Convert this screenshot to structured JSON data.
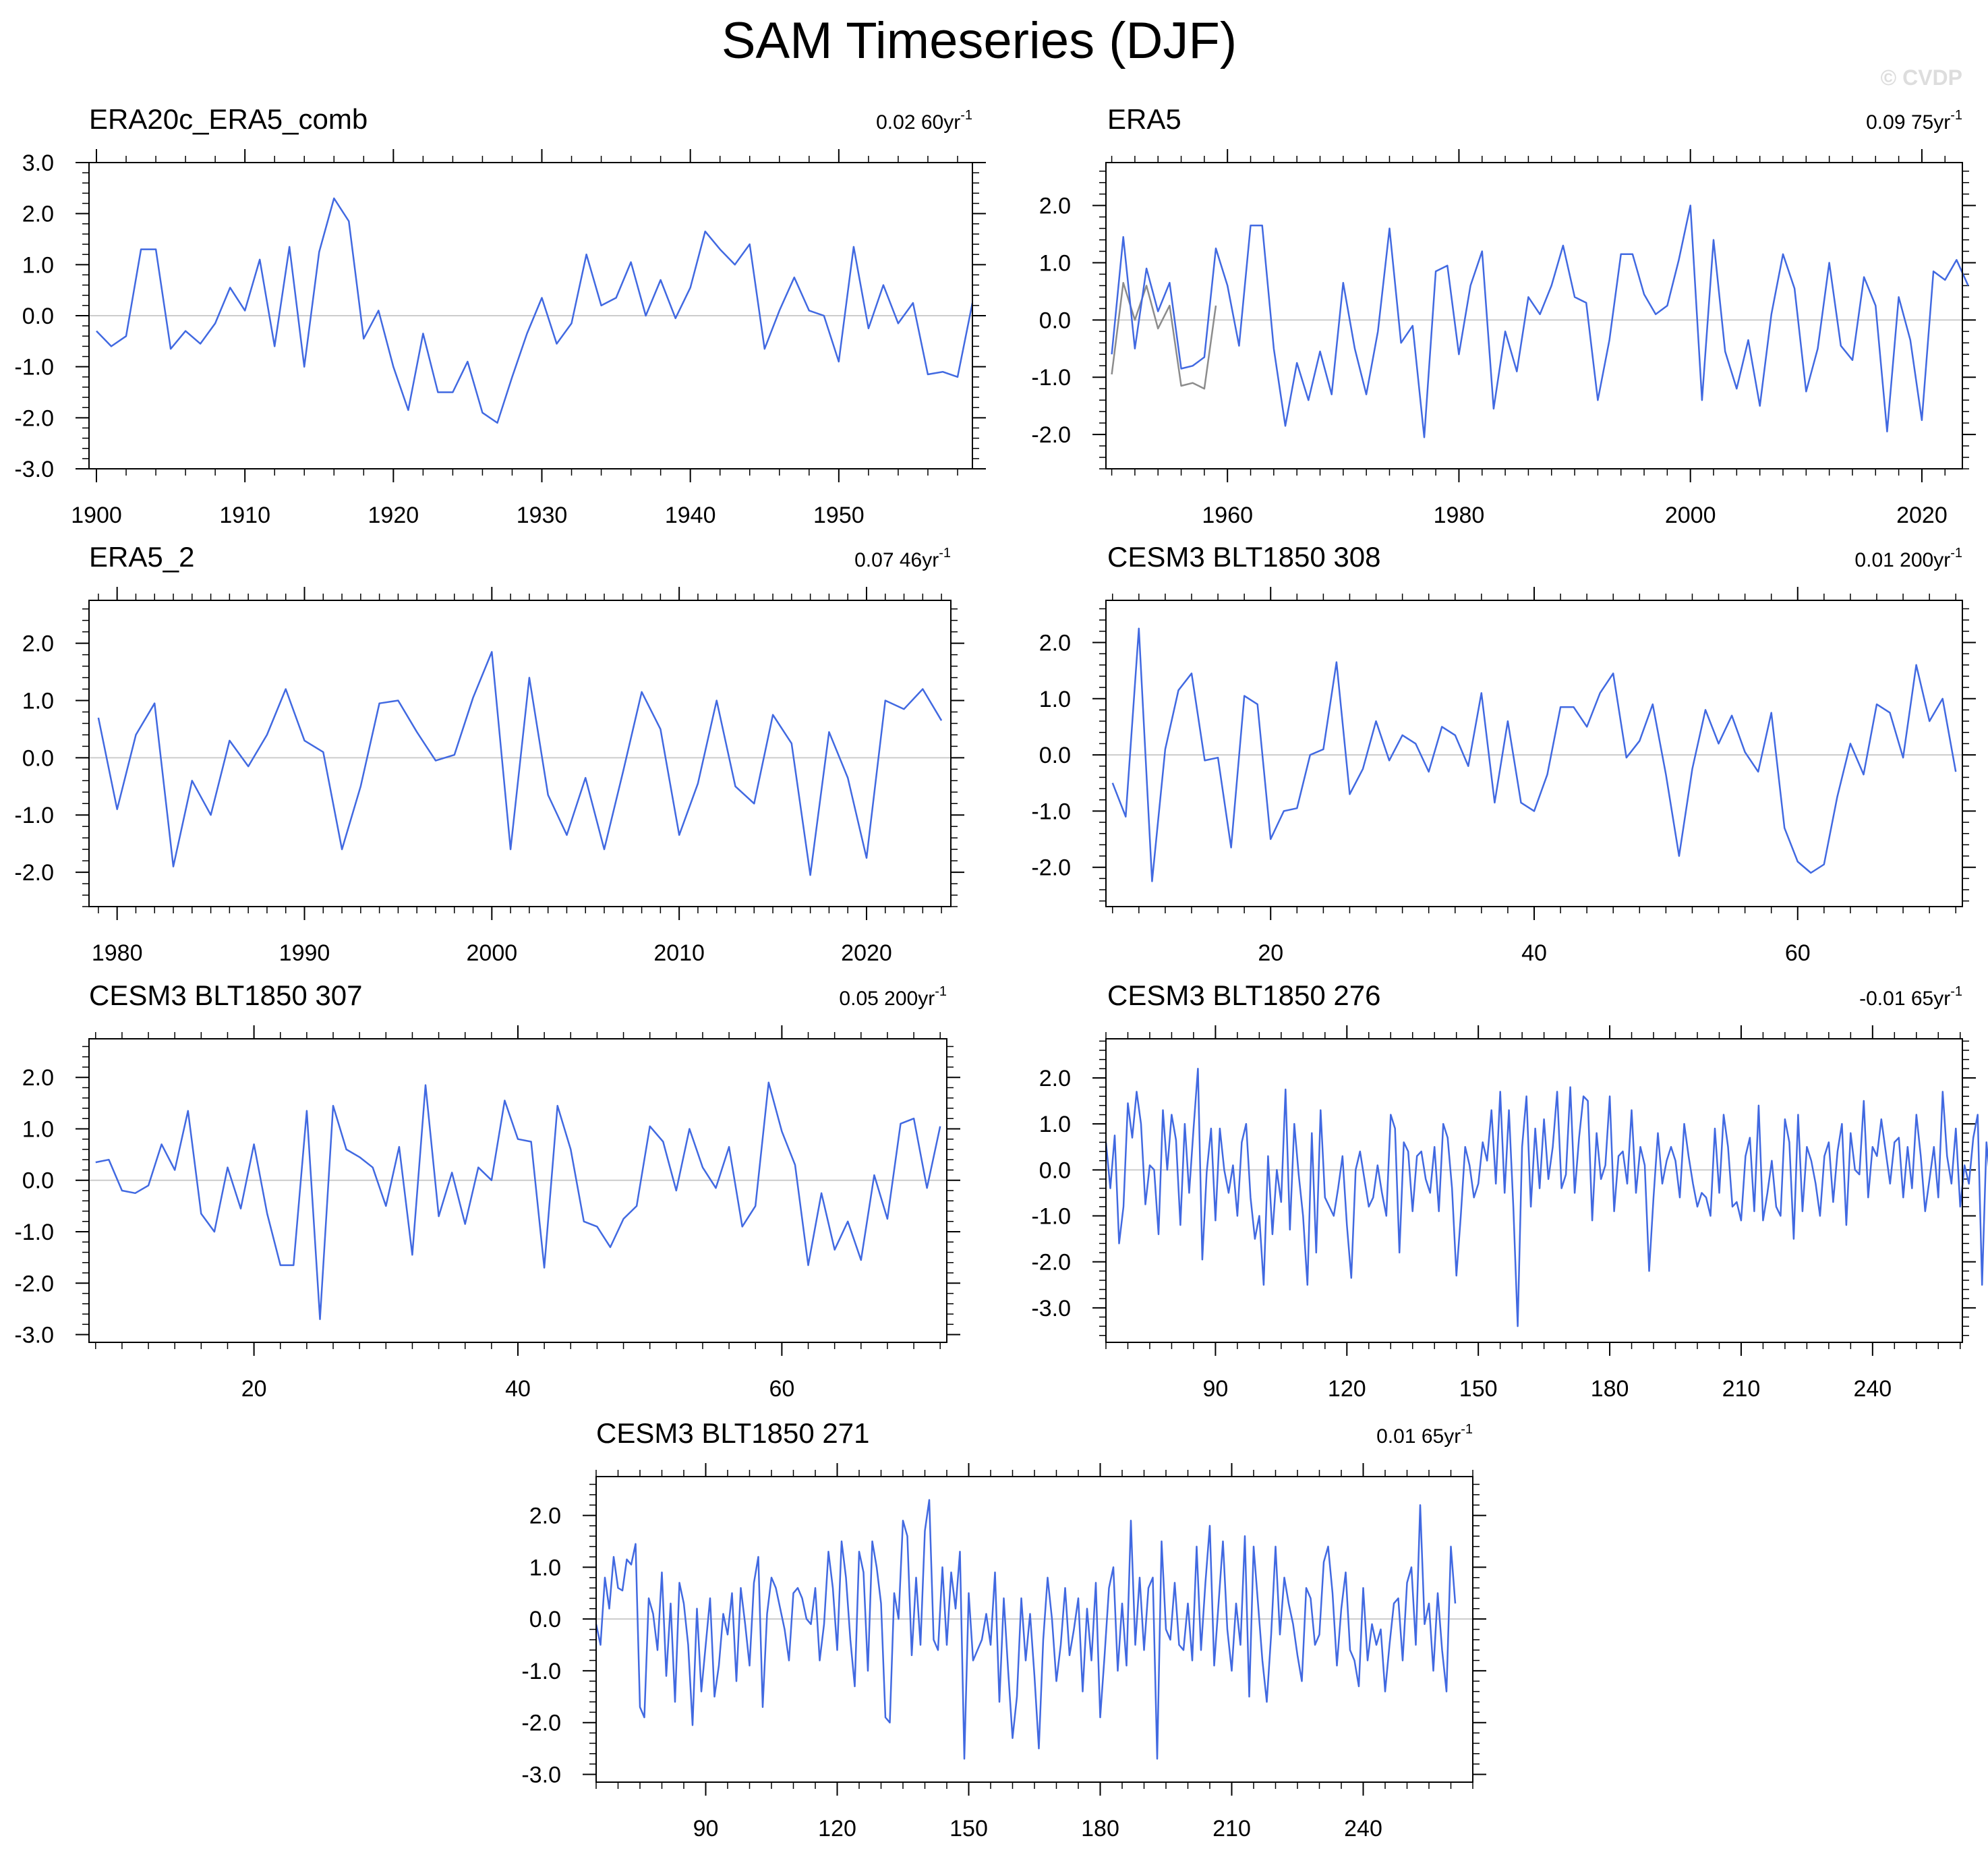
{
  "figure": {
    "title": "SAM Timeseries (DJF)",
    "watermark": "© CVDP"
  },
  "colors": {
    "line": "#4169e1",
    "obs_overlay": "#8c8c8c",
    "zero_line": "#cccccc",
    "axis": "#000000"
  },
  "chart_data": [
    {
      "type": "line",
      "title": "ERA20c_ERA5_comb",
      "trend_value": "0.02 60yr",
      "trend_unit_exp": "-1",
      "xlim": [
        1899.5,
        1959
      ],
      "ylim": [
        -3,
        3
      ],
      "yticks": [
        -3,
        -2,
        -1,
        0,
        1,
        2,
        3
      ],
      "ytick_labels": [
        "-3.0",
        "-2.0",
        "-1.0",
        "0.0",
        "1.0",
        "2.0",
        "3.0"
      ],
      "xticks": [
        1900,
        1910,
        1920,
        1930,
        1940,
        1950
      ],
      "xtick_labels": [
        "1900",
        "1910",
        "1920",
        "1930",
        "1940",
        "1950"
      ],
      "x_start": 1900,
      "values": [
        -0.3,
        -0.6,
        -0.4,
        1.3,
        1.3,
        -0.65,
        -0.3,
        -0.55,
        -0.15,
        0.55,
        0.1,
        1.1,
        -0.6,
        1.35,
        -1.0,
        1.25,
        2.3,
        1.85,
        -0.45,
        0.1,
        -1.0,
        -1.85,
        -0.35,
        -1.5,
        -1.5,
        -0.9,
        -1.9,
        -2.1,
        -1.2,
        -0.35,
        0.35,
        -0.55,
        -0.15,
        1.2,
        0.2,
        0.35,
        1.05,
        0.0,
        0.7,
        -0.05,
        0.55,
        1.65,
        1.3,
        1.0,
        1.4,
        -0.65,
        0.1,
        0.75,
        0.1,
        0.0,
        -0.9,
        1.35,
        -0.25,
        0.6,
        -0.15,
        0.25,
        -1.15,
        -1.1,
        -1.2,
        0.25
      ]
    },
    {
      "type": "line",
      "title": "ERA5",
      "trend_value": "0.09 75yr",
      "trend_unit_exp": "-1",
      "xlim": [
        1949.5,
        2023.5
      ],
      "ylim": [
        -2.6,
        2.75
      ],
      "yticks": [
        -2,
        -1,
        0,
        1,
        2
      ],
      "ytick_labels": [
        "-2.0",
        "-1.0",
        "0.0",
        "1.0",
        "2.0"
      ],
      "xticks": [
        1960,
        1980,
        2000,
        2020
      ],
      "xtick_labels": [
        "1960",
        "1980",
        "2000",
        "2020"
      ],
      "x_start": 1950,
      "values": [
        -0.6,
        1.45,
        -0.5,
        0.9,
        0.15,
        0.65,
        -0.85,
        -0.8,
        -0.65,
        1.25,
        0.6,
        -0.45,
        1.65,
        1.65,
        -0.5,
        -1.85,
        -0.75,
        -1.4,
        -0.55,
        -1.3,
        0.65,
        -0.5,
        -1.3,
        -0.2,
        1.6,
        -0.4,
        -0.1,
        -2.05,
        0.85,
        0.95,
        -0.6,
        0.6,
        1.2,
        -1.55,
        -0.2,
        -0.9,
        0.4,
        0.1,
        0.6,
        1.3,
        0.4,
        0.3,
        -1.4,
        -0.35,
        1.15,
        1.15,
        0.45,
        0.1,
        0.25,
        1.05,
        2.0,
        -1.4,
        1.4,
        -0.55,
        -1.2,
        -0.35,
        -1.5,
        0.1,
        1.15,
        0.55,
        -1.25,
        -0.5,
        1.0,
        -0.45,
        -0.7,
        0.75,
        0.25,
        -1.95,
        0.4,
        -0.35,
        -1.75,
        0.85,
        0.7,
        1.05,
        0.6
      ],
      "overlay": {
        "x_start": 1950,
        "values": [
          -0.95,
          0.65,
          0.0,
          0.6,
          -0.15,
          0.25,
          -1.15,
          -1.1,
          -1.2,
          0.25
        ]
      }
    },
    {
      "type": "line",
      "title": "ERA5_2",
      "trend_value": "0.07 46yr",
      "trend_unit_exp": "-1",
      "xlim": [
        1978.5,
        2024.5
      ],
      "ylim": [
        -2.6,
        2.75
      ],
      "yticks": [
        -2,
        -1,
        0,
        1,
        2
      ],
      "ytick_labels": [
        "-2.0",
        "-1.0",
        "0.0",
        "1.0",
        "2.0"
      ],
      "xticks": [
        1980,
        1990,
        2000,
        2010,
        2020
      ],
      "xtick_labels": [
        "1980",
        "1990",
        "2000",
        "2010",
        "2020"
      ],
      "x_start": 1979,
      "values": [
        0.7,
        -0.9,
        0.4,
        0.95,
        -1.9,
        -0.4,
        -1.0,
        0.3,
        -0.15,
        0.4,
        1.2,
        0.3,
        0.1,
        -1.6,
        -0.5,
        0.95,
        1.0,
        0.45,
        -0.05,
        0.05,
        1.05,
        1.85,
        -1.6,
        1.4,
        -0.65,
        -1.35,
        -0.35,
        -1.6,
        -0.25,
        1.15,
        0.5,
        -1.35,
        -0.45,
        1.0,
        -0.5,
        -0.8,
        0.75,
        0.25,
        -2.05,
        0.45,
        -0.35,
        -1.75,
        1.0,
        0.85,
        1.2,
        0.65
      ]
    },
    {
      "type": "line",
      "title": "CESM3 BLT1850 308",
      "trend_value": "0.01 200yr",
      "trend_unit_exp": "-1",
      "xlim": [
        7.5,
        72.5
      ],
      "ylim": [
        -2.7,
        2.75
      ],
      "yticks": [
        -2,
        -1,
        0,
        1,
        2
      ],
      "ytick_labels": [
        "-2.0",
        "-1.0",
        "0.0",
        "1.0",
        "2.0"
      ],
      "xticks": [
        20,
        40,
        60
      ],
      "xtick_labels": [
        "20",
        "40",
        "60"
      ],
      "x_start": 8,
      "values": [
        -0.5,
        -1.1,
        2.25,
        -2.25,
        0.1,
        1.15,
        1.45,
        -0.1,
        -0.05,
        -1.65,
        1.05,
        0.9,
        -1.5,
        -1.0,
        -0.95,
        0.0,
        0.1,
        1.65,
        -0.7,
        -0.25,
        0.6,
        -0.1,
        0.35,
        0.2,
        -0.3,
        0.5,
        0.35,
        -0.2,
        1.1,
        -0.85,
        0.6,
        -0.85,
        -1.0,
        -0.35,
        0.85,
        0.85,
        0.5,
        1.1,
        1.45,
        -0.05,
        0.25,
        0.9,
        -0.35,
        -1.8,
        -0.25,
        0.8,
        0.2,
        0.7,
        0.05,
        -0.3,
        0.75,
        -1.3,
        -1.9,
        -2.1,
        -1.95,
        -0.75,
        0.2,
        -0.35,
        0.9,
        0.75,
        -0.05,
        1.6,
        0.6,
        1.0,
        -0.3
      ]
    },
    {
      "type": "line",
      "title": "CESM3 BLT1850 307",
      "trend_value": "0.05 200yr",
      "trend_unit_exp": "-1",
      "xlim": [
        7.5,
        72.5
      ],
      "ylim": [
        -3.15,
        2.75
      ],
      "yticks": [
        -3,
        -2,
        -1,
        0,
        1,
        2
      ],
      "ytick_labels": [
        "-3.0",
        "-2.0",
        "-1.0",
        "0.0",
        "1.0",
        "2.0"
      ],
      "xticks": [
        20,
        40,
        60
      ],
      "xtick_labels": [
        "20",
        "40",
        "60"
      ],
      "x_start": 8,
      "values": [
        0.35,
        0.4,
        -0.2,
        -0.25,
        -0.1,
        0.7,
        0.2,
        1.35,
        -0.65,
        -1.0,
        0.25,
        -0.55,
        0.7,
        -0.65,
        -1.65,
        -1.65,
        1.35,
        -2.7,
        1.45,
        0.6,
        0.45,
        0.25,
        -0.5,
        0.65,
        -1.45,
        1.85,
        -0.7,
        0.15,
        -0.85,
        0.25,
        0.0,
        1.55,
        0.8,
        0.75,
        -1.7,
        1.45,
        0.6,
        -0.8,
        -0.9,
        -1.3,
        -0.75,
        -0.5,
        1.05,
        0.75,
        -0.2,
        1.0,
        0.25,
        -0.15,
        0.65,
        -0.9,
        -0.5,
        1.9,
        0.95,
        0.3,
        -1.65,
        -0.25,
        -1.35,
        -0.8,
        -1.55,
        0.1,
        -0.75,
        1.1,
        1.2,
        -0.15,
        1.05
      ]
    },
    {
      "type": "line",
      "title": "CESM3 BLT1850 276",
      "trend_value": "-0.01 65yr",
      "trend_unit_exp": "-1",
      "xlim": [
        65,
        260.5
      ],
      "ylim": [
        -3.75,
        2.85
      ],
      "yticks": [
        -3,
        -2,
        -1,
        0,
        1,
        2
      ],
      "ytick_labels": [
        "-3.0",
        "-2.0",
        "-1.0",
        "0.0",
        "1.0",
        "2.0"
      ],
      "xticks": [
        90,
        120,
        150,
        180,
        210,
        240
      ],
      "xtick_labels": [
        "90",
        "120",
        "150",
        "180",
        "210",
        "240"
      ],
      "x_start": 65,
      "values": [
        0.6,
        -0.4,
        0.75,
        -1.6,
        -0.8,
        1.45,
        0.7,
        1.7,
        1.0,
        -0.75,
        0.1,
        0.0,
        -1.4,
        1.3,
        0.0,
        1.2,
        0.65,
        -1.2,
        1.0,
        -0.5,
        0.9,
        2.2,
        -1.95,
        -0.05,
        0.9,
        -1.1,
        0.9,
        0.0,
        -0.5,
        0.1,
        -1.0,
        0.6,
        1.0,
        -0.6,
        -1.5,
        -1.0,
        -2.5,
        0.3,
        -1.4,
        0.0,
        -0.7,
        1.75,
        -1.3,
        1.0,
        -0.1,
        -1.0,
        -2.5,
        0.8,
        -1.8,
        1.3,
        -0.6,
        -0.8,
        -1.0,
        -0.4,
        0.3,
        -1.2,
        -2.35,
        0.0,
        0.4,
        -0.2,
        -0.8,
        -0.6,
        0.1,
        -0.5,
        -1.0,
        1.2,
        0.9,
        -1.8,
        0.6,
        0.4,
        -0.9,
        0.3,
        0.4,
        -0.2,
        -0.5,
        0.5,
        -0.9,
        1.0,
        0.7,
        -0.4,
        -2.3,
        -1.0,
        0.5,
        0.1,
        -0.6,
        -0.3,
        0.6,
        0.2,
        1.3,
        -0.3,
        1.7,
        -0.5,
        1.3,
        -0.8,
        -3.4,
        0.5,
        1.6,
        -0.8,
        0.9,
        -0.4,
        1.1,
        -0.2,
        0.5,
        1.7,
        -0.4,
        -0.1,
        1.8,
        -0.5,
        0.7,
        1.6,
        1.5,
        -1.1,
        0.8,
        -0.2,
        0.1,
        1.6,
        -0.9,
        0.3,
        0.4,
        -0.3,
        1.3,
        -0.5,
        0.5,
        0.1,
        -2.2,
        -0.6,
        0.8,
        -0.3,
        0.2,
        0.5,
        0.2,
        -0.6,
        1.0,
        0.3,
        -0.3,
        -0.8,
        -0.5,
        -0.6,
        -1.0,
        0.9,
        -0.5,
        1.2,
        0.5,
        -0.8,
        -0.7,
        -1.1,
        0.3,
        0.7,
        -0.9,
        1.4,
        -1.1,
        -0.5,
        0.2,
        -0.8,
        -1.0,
        1.1,
        0.6,
        -1.5,
        1.2,
        -0.9,
        0.5,
        0.2,
        -0.3,
        -1.0,
        0.3,
        0.6,
        -0.7,
        0.4,
        1.0,
        -1.2,
        0.8,
        0.0,
        -0.1,
        1.5,
        -0.6,
        0.5,
        0.3,
        1.1,
        0.4,
        -0.3,
        0.6,
        0.7,
        -0.6,
        0.5,
        -0.4,
        1.2,
        0.3,
        -0.9,
        -0.2,
        0.5,
        -0.6,
        1.7,
        0.3,
        -0.3,
        0.9,
        -0.8,
        0.1,
        -0.3,
        0.7,
        1.2,
        -2.5,
        0.6,
        -0.4
      ]
    },
    {
      "type": "line",
      "title": "CESM3 BLT1850 271",
      "trend_value": "0.01 65yr",
      "trend_unit_exp": "-1",
      "xlim": [
        65,
        265
      ],
      "ylim": [
        -3.15,
        2.75
      ],
      "yticks": [
        -3,
        -2,
        -1,
        0,
        1,
        2
      ],
      "ytick_labels": [
        "-3.0",
        "-2.0",
        "-1.0",
        "0.0",
        "1.0",
        "2.0"
      ],
      "xticks": [
        90,
        120,
        150,
        180,
        210,
        240
      ],
      "xtick_labels": [
        "90",
        "120",
        "150",
        "180",
        "210",
        "240"
      ],
      "x_start": 65,
      "values": [
        -0.1,
        -0.5,
        0.8,
        0.2,
        1.2,
        0.6,
        0.55,
        1.15,
        1.05,
        1.45,
        -1.7,
        -1.9,
        0.4,
        0.1,
        -0.6,
        0.9,
        -1.1,
        0.3,
        -1.6,
        0.7,
        0.3,
        -0.5,
        -2.05,
        0.2,
        -1.4,
        -0.5,
        0.4,
        -1.5,
        -0.9,
        0.1,
        -0.3,
        0.5,
        -1.2,
        0.6,
        -0.1,
        -0.9,
        0.7,
        1.2,
        -1.7,
        0.1,
        0.8,
        0.6,
        0.2,
        -0.2,
        -0.8,
        0.5,
        0.6,
        0.4,
        0.0,
        -0.1,
        0.6,
        -0.8,
        -0.1,
        1.3,
        0.6,
        -0.6,
        1.5,
        0.8,
        -0.4,
        -1.3,
        1.3,
        0.9,
        -1.0,
        1.5,
        1.0,
        0.3,
        -1.9,
        -2.0,
        0.5,
        0.0,
        1.9,
        1.6,
        -0.7,
        0.8,
        -0.5,
        1.7,
        2.3,
        -0.4,
        -0.6,
        1.0,
        -0.5,
        0.9,
        0.2,
        1.3,
        -2.7,
        0.5,
        -0.8,
        -0.6,
        -0.4,
        0.1,
        -0.5,
        0.9,
        -1.6,
        0.4,
        -1.0,
        -2.3,
        -1.5,
        0.4,
        -0.8,
        0.1,
        -1.1,
        -2.5,
        -0.4,
        0.8,
        0.0,
        -1.2,
        -0.5,
        0.6,
        -0.7,
        -0.2,
        0.4,
        -1.4,
        0.2,
        -0.8,
        0.7,
        -1.9,
        -0.7,
        0.6,
        1.0,
        -1.0,
        0.3,
        -0.9,
        1.9,
        -0.5,
        0.8,
        -0.6,
        0.6,
        0.8,
        -2.7,
        1.5,
        -0.2,
        -0.4,
        0.7,
        -0.5,
        -0.6,
        0.3,
        -0.8,
        1.4,
        -0.6,
        0.7,
        1.8,
        -0.9,
        0.3,
        1.5,
        -0.2,
        -1.0,
        0.3,
        -0.5,
        1.6,
        -1.5,
        1.4,
        0.3,
        -0.8,
        -1.6,
        -0.3,
        1.4,
        -0.3,
        0.8,
        0.3,
        -0.1,
        -0.7,
        -1.2,
        0.6,
        0.4,
        -0.5,
        -0.3,
        1.1,
        1.4,
        0.5,
        -0.9,
        0.2,
        0.9,
        -0.6,
        -0.8,
        -1.3,
        0.6,
        -0.8,
        -0.1,
        -0.5,
        -0.2,
        -1.4,
        -0.5,
        0.3,
        0.4,
        -0.8,
        0.7,
        1.0,
        -0.5,
        2.2,
        -0.1,
        0.3,
        -1.0,
        0.5,
        -0.6,
        -1.4,
        1.4,
        0.3
      ]
    }
  ]
}
